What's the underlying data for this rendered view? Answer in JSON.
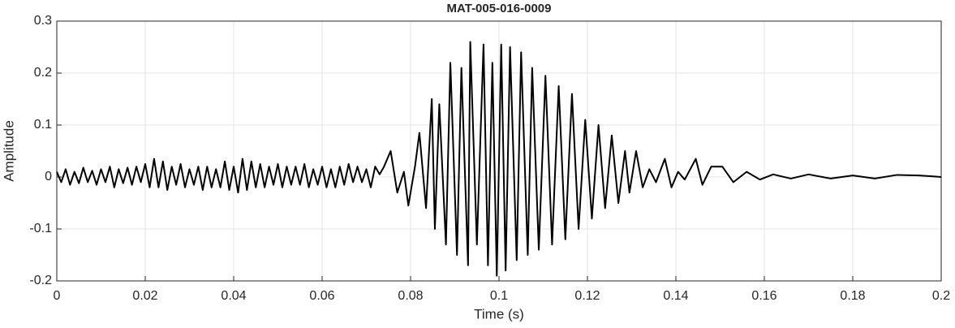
{
  "chart_data": {
    "type": "line",
    "title": "MAT-005-016-0009",
    "xlabel": "Time (s)",
    "ylabel": "Amplitude",
    "x": [
      0,
      0.001,
      0.002,
      0.003,
      0.004,
      0.005,
      0.006,
      0.007,
      0.008,
      0.009,
      0.01,
      0.011,
      0.012,
      0.013,
      0.014,
      0.015,
      0.016,
      0.017,
      0.018,
      0.019,
      0.02,
      0.021,
      0.022,
      0.023,
      0.024,
      0.025,
      0.026,
      0.027,
      0.028,
      0.029,
      0.03,
      0.031,
      0.032,
      0.033,
      0.034,
      0.035,
      0.036,
      0.037,
      0.038,
      0.039,
      0.04,
      0.041,
      0.042,
      0.043,
      0.044,
      0.045,
      0.046,
      0.047,
      0.048,
      0.049,
      0.05,
      0.051,
      0.052,
      0.053,
      0.054,
      0.055,
      0.056,
      0.057,
      0.058,
      0.059,
      0.06,
      0.061,
      0.062,
      0.063,
      0.064,
      0.065,
      0.066,
      0.067,
      0.068,
      0.069,
      0.07,
      0.071,
      0.072,
      0.073,
      0.074,
      0.0755,
      0.077,
      0.0785,
      0.0795,
      0.081,
      0.082,
      0.0835,
      0.0848,
      0.0855,
      0.0865,
      0.088,
      0.089,
      0.0905,
      0.0915,
      0.093,
      0.0935,
      0.095,
      0.0965,
      0.0975,
      0.0985,
      0.0995,
      0.1005,
      0.1015,
      0.1025,
      0.104,
      0.105,
      0.1065,
      0.1075,
      0.109,
      0.1105,
      0.112,
      0.1135,
      0.115,
      0.1165,
      0.118,
      0.1195,
      0.121,
      0.1225,
      0.124,
      0.1255,
      0.127,
      0.1285,
      0.1295,
      0.131,
      0.1325,
      0.134,
      0.1355,
      0.1375,
      0.139,
      0.1405,
      0.142,
      0.1445,
      0.146,
      0.148,
      0.1505,
      0.153,
      0.156,
      0.159,
      0.162,
      0.166,
      0.17,
      0.175,
      0.18,
      0.185,
      0.19,
      0.195,
      0.2
    ],
    "series": [
      {
        "color": "#000000",
        "values": [
          0.01,
          -0.01,
          0.015,
          -0.015,
          0.01,
          -0.012,
          0.018,
          -0.01,
          0.012,
          -0.015,
          0.015,
          -0.01,
          0.02,
          -0.02,
          0.015,
          -0.012,
          0.018,
          -0.015,
          0.02,
          -0.01,
          0.025,
          -0.02,
          0.035,
          -0.02,
          0.03,
          -0.025,
          0.02,
          -0.015,
          0.025,
          -0.02,
          0.015,
          -0.015,
          0.02,
          -0.025,
          0.02,
          -0.02,
          0.015,
          -0.02,
          0.03,
          -0.025,
          0.02,
          -0.03,
          0.035,
          -0.025,
          0.03,
          -0.02,
          0.025,
          -0.02,
          0.02,
          -0.015,
          0.025,
          -0.02,
          0.02,
          -0.015,
          0.02,
          -0.015,
          0.025,
          -0.02,
          0.015,
          -0.015,
          0.02,
          -0.02,
          0.015,
          -0.02,
          0.02,
          -0.015,
          0.025,
          -0.01,
          0.02,
          -0.01,
          0.015,
          -0.02,
          0.02,
          0.005,
          0.02,
          0.05,
          -0.03,
          0.01,
          -0.055,
          0.02,
          0.085,
          -0.06,
          0.15,
          -0.1,
          0.14,
          -0.13,
          0.22,
          -0.15,
          0.21,
          -0.17,
          0.26,
          -0.13,
          0.255,
          -0.17,
          0.22,
          -0.19,
          0.255,
          -0.18,
          0.25,
          -0.16,
          0.24,
          -0.15,
          0.21,
          -0.14,
          0.195,
          -0.13,
          0.175,
          -0.12,
          0.16,
          -0.1,
          0.11,
          -0.08,
          0.1,
          -0.06,
          0.08,
          -0.05,
          0.05,
          -0.03,
          0.05,
          -0.02,
          0.015,
          -0.01,
          0.035,
          -0.02,
          0.01,
          -0.005,
          0.035,
          -0.015,
          0.02,
          0.02,
          -0.01,
          0.01,
          -0.005,
          0.005,
          -0.003,
          0.005,
          -0.003,
          0.003,
          -0.003,
          0.004,
          0.003,
          0
        ]
      }
    ],
    "xlim": [
      0,
      0.2
    ],
    "xticks": [
      0,
      0.02,
      0.04,
      0.06,
      0.08,
      0.1,
      0.12,
      0.14,
      0.16,
      0.18,
      0.2
    ],
    "ylim": [
      -0.2,
      0.3
    ],
    "yticks": [
      -0.2,
      -0.1,
      0,
      0.1,
      0.2,
      0.3
    ],
    "grid": true
  }
}
